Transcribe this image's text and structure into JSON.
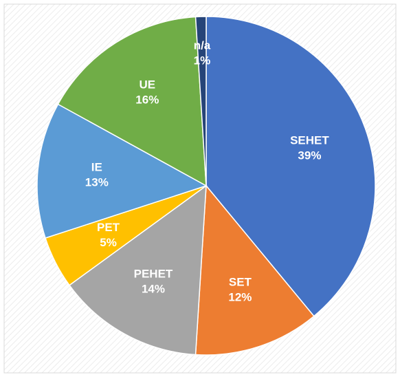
{
  "chart_data": {
    "type": "pie",
    "categories": [
      "SEHET",
      "SET",
      "PEHET",
      "PET",
      "IE",
      "UE",
      "n/a"
    ],
    "values": [
      39,
      12,
      14,
      5,
      13,
      16,
      1
    ],
    "value_labels": [
      "39%",
      "12%",
      "14%",
      "5%",
      "13%",
      "16%",
      "1%"
    ],
    "colors": [
      "#4472c4",
      "#ed7d31",
      "#a5a5a5",
      "#ffc000",
      "#5b9bd5",
      "#70ad47",
      "#264478"
    ]
  }
}
